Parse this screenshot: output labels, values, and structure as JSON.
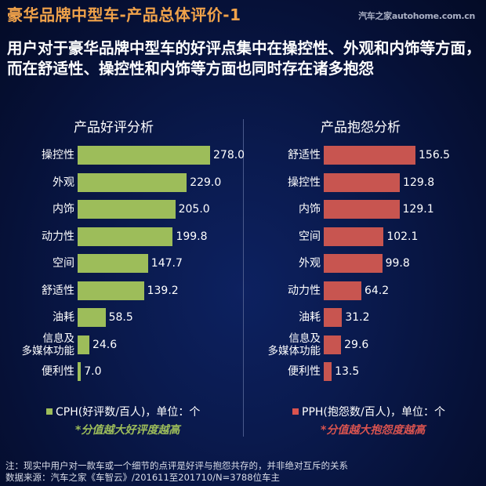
{
  "header": {
    "title": "豪华品牌中型车-产品总体评价-1",
    "watermark": "汽车之家autohome.com.cn",
    "subtitle": "用户对于豪华品牌中型车的好评点集中在操控性、外观和内饰等方面，而在舒适性、操控性和内饰等方面也同时存在诸多抱怨"
  },
  "colors": {
    "title": "#f0a24a",
    "praise_bar": "#9dbd5a",
    "complaint_bar": "#c85550",
    "praise_note": "#9dbd5a",
    "complaint_note": "#d9534f"
  },
  "chart_data": [
    {
      "type": "bar",
      "orientation": "horizontal",
      "title": "产品好评分析",
      "categories": [
        "操控性",
        "外观",
        "内饰",
        "动力性",
        "空间",
        "舒适性",
        "油耗",
        "信息及\n多媒体功能",
        "便利性"
      ],
      "values": [
        278.0,
        229.0,
        205.0,
        199.8,
        147.7,
        139.2,
        58.5,
        24.6,
        7.0
      ],
      "value_labels": [
        "278.0",
        "229.0",
        "205.0",
        "199.8",
        "147.7",
        "139.2",
        "58.5",
        "24.6",
        "7.0"
      ],
      "legend": "CPH(好评数/百人)，单位：个",
      "note": "*分值越大好评度越高",
      "xlabel": "",
      "ylabel": "",
      "grid": false,
      "color": "#9dbd5a"
    },
    {
      "type": "bar",
      "orientation": "horizontal",
      "title": "产品抱怨分析",
      "categories": [
        "舒适性",
        "操控性",
        "内饰",
        "空间",
        "外观",
        "动力性",
        "油耗",
        "信息及\n多媒体功能",
        "便利性"
      ],
      "values": [
        156.5,
        129.8,
        129.1,
        102.1,
        99.8,
        64.2,
        31.2,
        29.6,
        13.5
      ],
      "value_labels": [
        "156.5",
        "129.8",
        "129.1",
        "102.1",
        "99.8",
        "64.2",
        "31.2",
        "29.6",
        "13.5"
      ],
      "legend": "PPH(抱怨数/百人)，单位：个",
      "note": "*分值越大抱怨度越高",
      "xlabel": "",
      "ylabel": "",
      "grid": false,
      "color": "#c85550"
    }
  ],
  "footer": {
    "note": "注：现实中用户对一款车或一个细节的点评是好评与抱怨共存的，并非绝对互斥的关系",
    "source": "数据来源：汽车之家《车智云》/201611至201710/N=3788位车主"
  }
}
